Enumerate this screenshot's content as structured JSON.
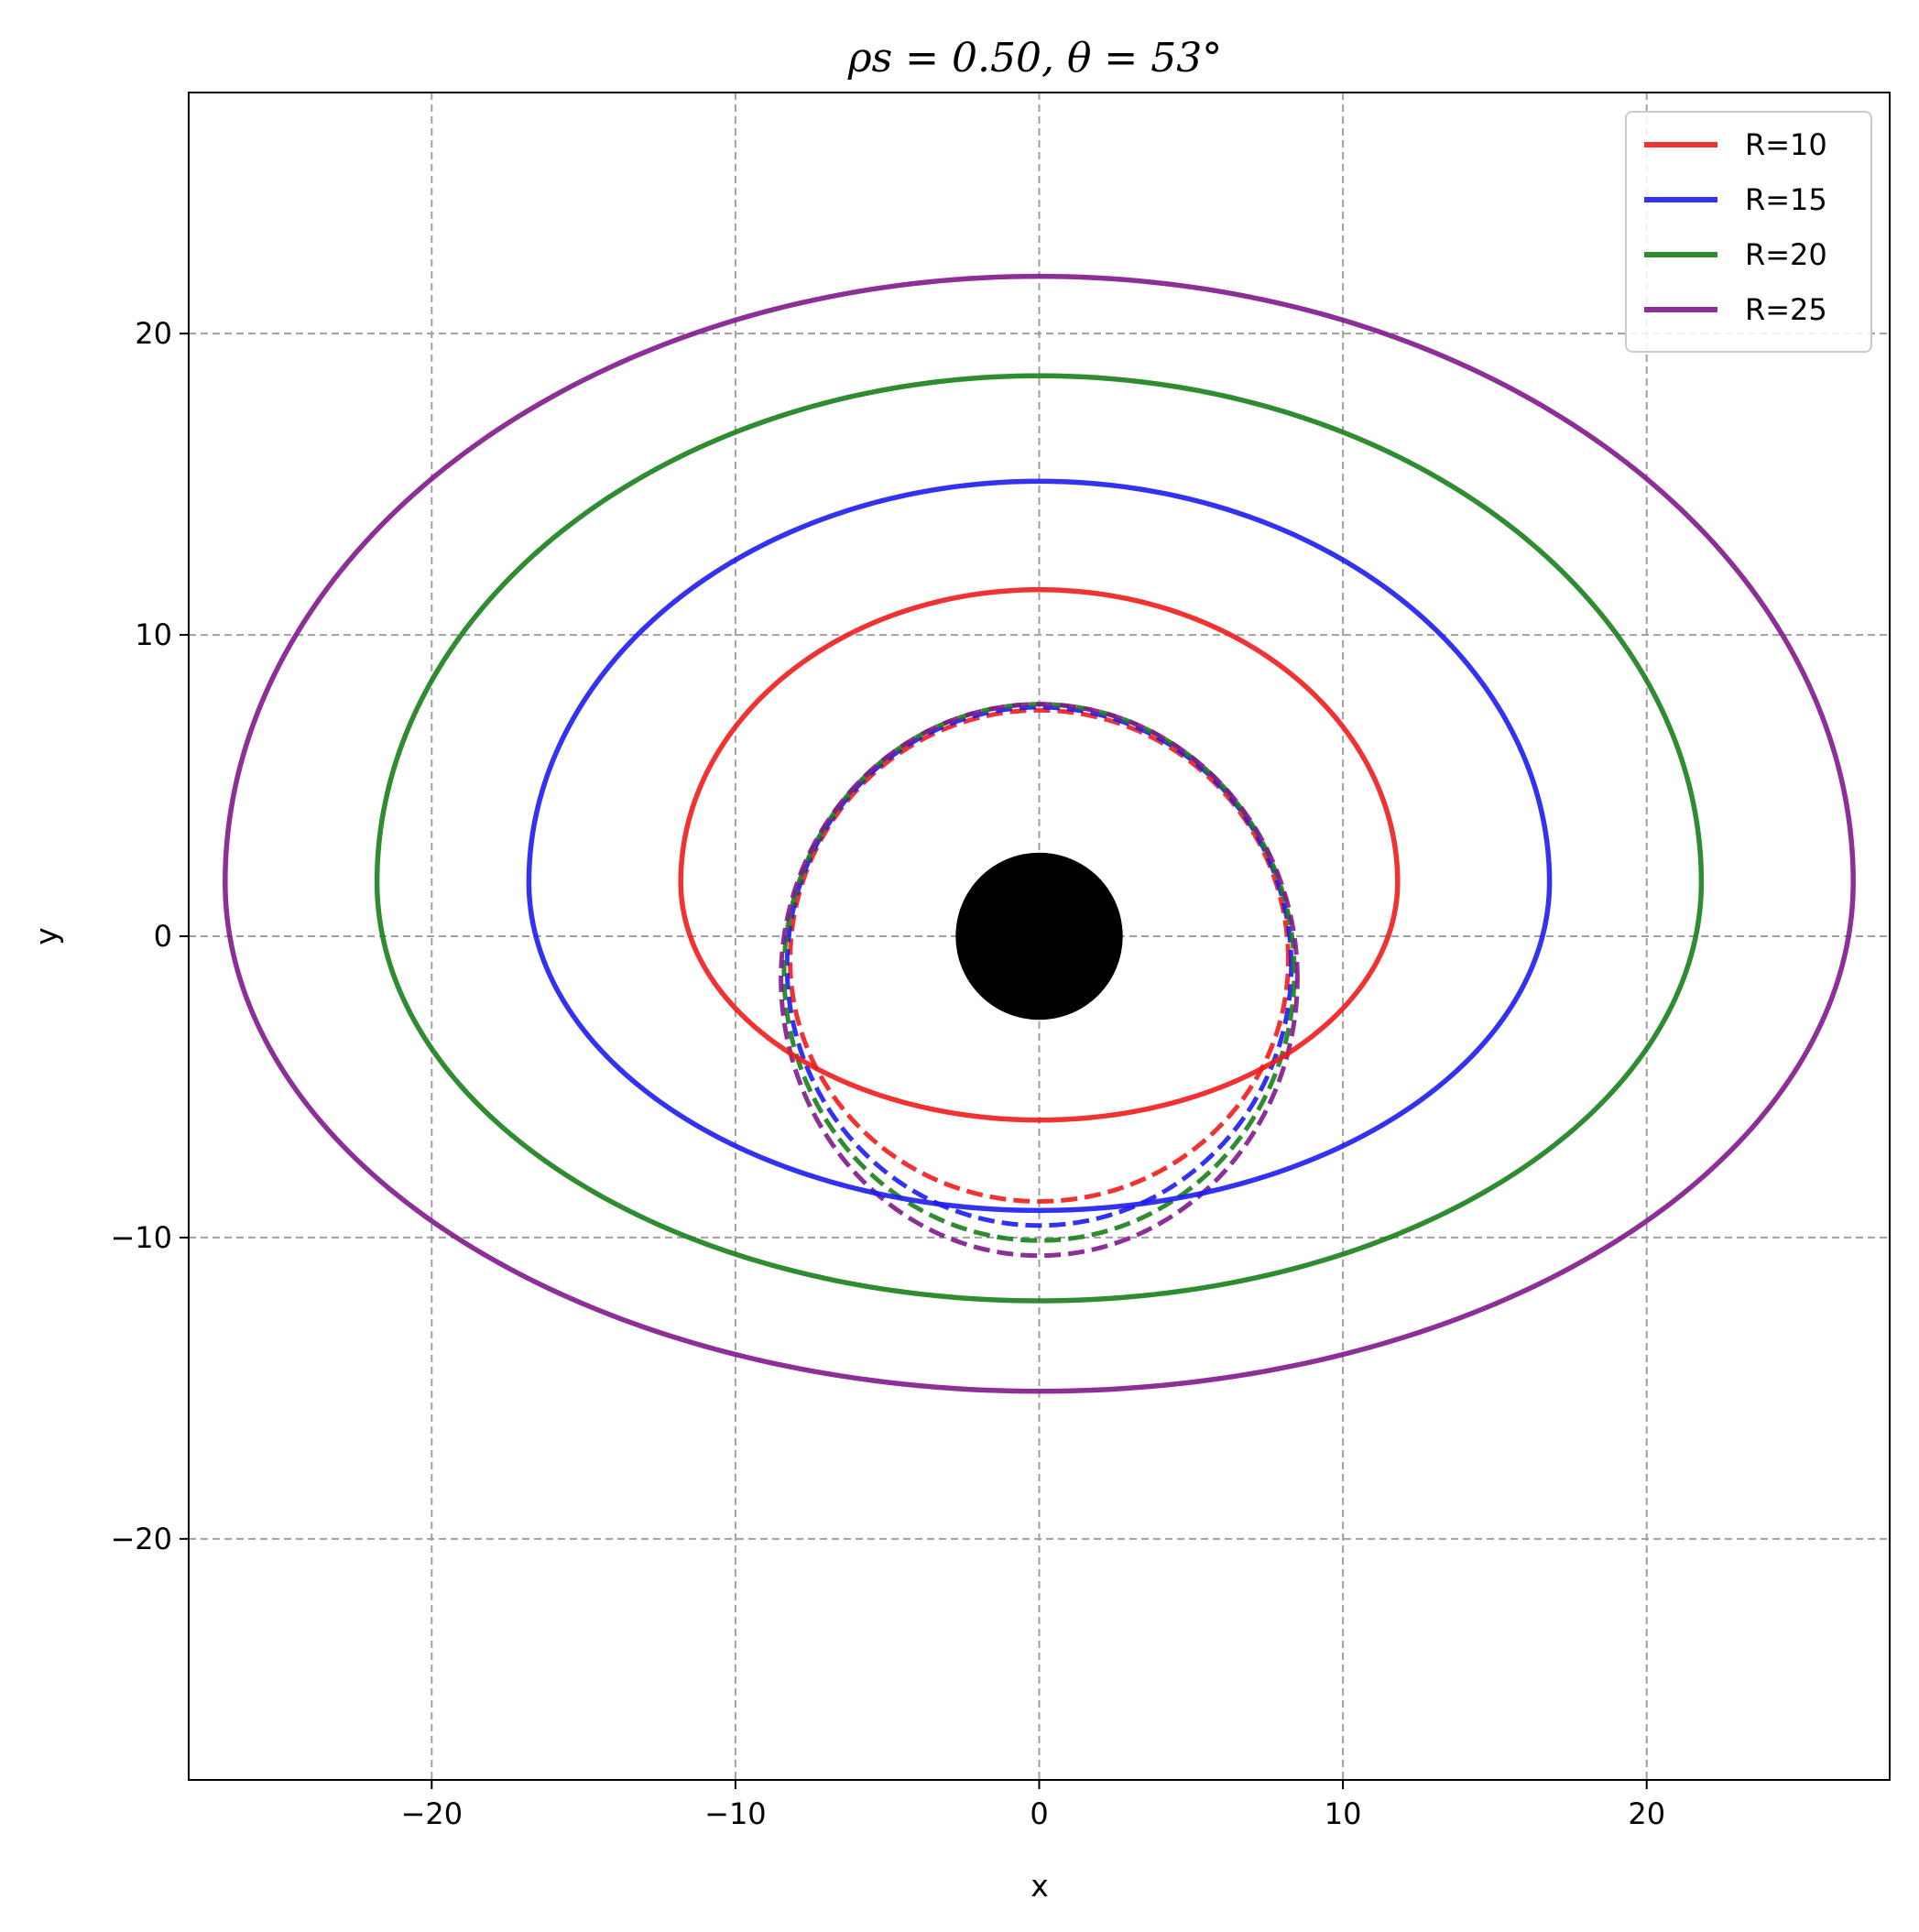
{
  "chart_data": {
    "type": "line",
    "title": "ρs = 0.50,  θ = 53°",
    "xlabel": "x",
    "ylabel": "y",
    "xlim": [
      -28,
      28
    ],
    "ylim": [
      -28,
      28
    ],
    "xticks": [
      -20,
      -10,
      0,
      10,
      20
    ],
    "yticks": [
      -20,
      -10,
      0,
      10,
      20
    ],
    "xtick_labels": [
      "−20",
      "−10",
      "0",
      "10",
      "20"
    ],
    "ytick_labels": [
      "−20",
      "−10",
      "0",
      "10",
      "20"
    ],
    "grid": true,
    "legend_position": "top-right",
    "central_disk": {
      "x": 0,
      "y": 0,
      "radius": 2.75,
      "color": "#000000"
    },
    "series": [
      {
        "name": "R=10",
        "color": "#ee1c1c",
        "direct": {
          "x_min": -11.8,
          "x_max": 11.8,
          "y_min": -6.1,
          "y_max": 11.5,
          "y_at_max_width": 1.8
        },
        "secondary": {
          "x_min": -8.2,
          "x_max": 8.2,
          "y_min": -8.8,
          "y_max": 7.5,
          "y_at_max_width": -0.8
        }
      },
      {
        "name": "R=15",
        "color": "#1c1cee",
        "direct": {
          "x_min": -16.8,
          "x_max": 16.8,
          "y_min": -9.1,
          "y_max": 15.1,
          "y_at_max_width": 1.8
        },
        "secondary": {
          "x_min": -8.3,
          "x_max": 8.3,
          "y_min": -9.6,
          "y_max": 7.6,
          "y_at_max_width": -1.0
        }
      },
      {
        "name": "R=20",
        "color": "#1a801a",
        "direct": {
          "x_min": -21.8,
          "x_max": 21.8,
          "y_min": -12.1,
          "y_max": 18.6,
          "y_at_max_width": 1.8
        },
        "secondary": {
          "x_min": -8.4,
          "x_max": 8.4,
          "y_min": -10.1,
          "y_max": 7.7,
          "y_at_max_width": -1.2
        }
      },
      {
        "name": "R=25",
        "color": "#801a8c",
        "direct": {
          "x_min": -26.8,
          "x_max": 26.8,
          "y_min": -15.1,
          "y_max": 21.9,
          "y_at_max_width": 1.8
        },
        "secondary": {
          "x_min": -8.5,
          "x_max": 8.5,
          "y_min": -10.6,
          "y_max": 7.7,
          "y_at_max_width": -1.4
        }
      }
    ]
  }
}
